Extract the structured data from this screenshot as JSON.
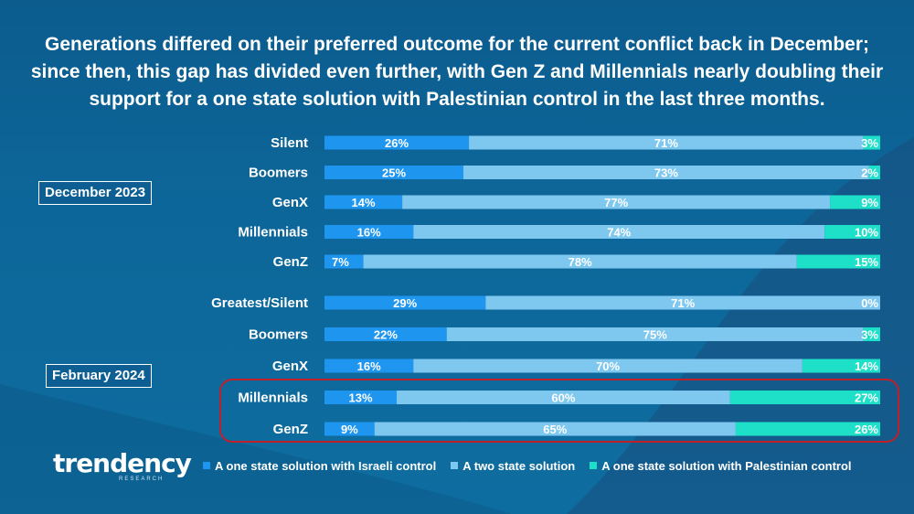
{
  "title": "Generations differed on their preferred outcome for the current conflict back in December; since then, this gap has divided even further, with Gen Z and Millennials nearly doubling their support for a one state solution with Palestinian control in the last three months.",
  "colors": {
    "israeli": "#1e96f0",
    "two_state": "#7ec8f0",
    "palestinian": "#1ee0c8",
    "highlight": "#c0202a"
  },
  "legend": {
    "israeli": "A one state solution with Israeli control",
    "two_state": "A two state solution",
    "palestinian": "A one state solution with Palestinian control"
  },
  "logo": {
    "word": "trendency",
    "sub": "RESEARCH"
  },
  "chart_data": {
    "type": "bar",
    "stacked": true,
    "orientation": "horizontal",
    "series_keys": [
      "israeli",
      "two_state",
      "palestinian"
    ],
    "groups": [
      {
        "period": "December 2023",
        "rows": [
          {
            "label": "Silent",
            "values": [
              26,
              71,
              3
            ],
            "labels": [
              "26%",
              "71%",
              "3%"
            ]
          },
          {
            "label": "Boomers",
            "values": [
              25,
              73,
              2
            ],
            "labels": [
              "25%",
              "73%",
              "2%"
            ]
          },
          {
            "label": "GenX",
            "values": [
              14,
              77,
              9
            ],
            "labels": [
              "14%",
              "77%",
              "9%"
            ]
          },
          {
            "label": "Millennials",
            "values": [
              16,
              74,
              10
            ],
            "labels": [
              "16%",
              "74%",
              "10%"
            ]
          },
          {
            "label": "GenZ",
            "values": [
              7,
              78,
              15
            ],
            "labels": [
              "7%",
              "78%",
              "15%"
            ]
          }
        ]
      },
      {
        "period": "February 2024",
        "rows": [
          {
            "label": "Greatest/Silent",
            "values": [
              29,
              71,
              0
            ],
            "labels": [
              "29%",
              "71%",
              "0%"
            ]
          },
          {
            "label": "Boomers",
            "values": [
              22,
              75,
              3
            ],
            "labels": [
              "22%",
              "75%",
              "3%"
            ]
          },
          {
            "label": "GenX",
            "values": [
              16,
              70,
              14
            ],
            "labels": [
              "16%",
              "70%",
              "14%"
            ]
          },
          {
            "label": "Millennials",
            "values": [
              13,
              60,
              27
            ],
            "labels": [
              "13%",
              "60%",
              "27%"
            ]
          },
          {
            "label": "GenZ",
            "values": [
              9,
              65,
              26
            ],
            "labels": [
              "9%",
              "65%",
              "26%"
            ]
          }
        ]
      }
    ],
    "xlim": [
      0,
      100
    ],
    "legend_position": "bottom"
  }
}
